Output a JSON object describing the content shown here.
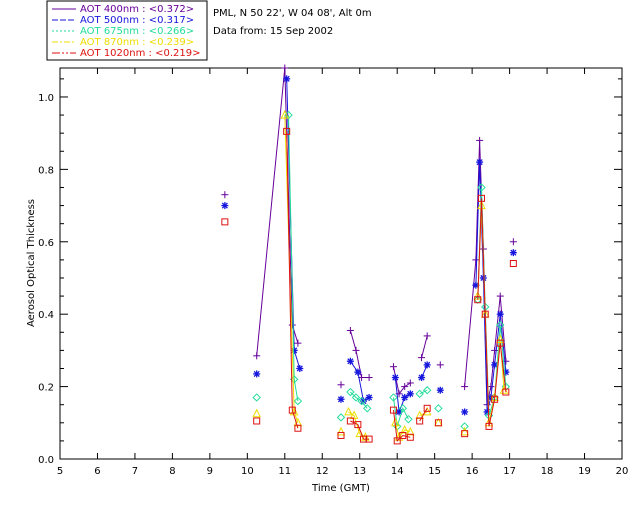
{
  "chart_data": {
    "type": "scatter",
    "title": "",
    "xlabel": "Time (GMT)",
    "ylabel": "Aerosol Optical Thickness",
    "xlim": [
      5,
      20
    ],
    "ylim": [
      0,
      1.08
    ],
    "xticks": [
      5,
      6,
      7,
      8,
      9,
      10,
      11,
      12,
      13,
      14,
      15,
      16,
      17,
      18,
      19,
      20
    ],
    "yticks": [
      0.0,
      0.2,
      0.4,
      0.6,
      0.8,
      1.0
    ],
    "xtick_labels": [
      "5",
      "6",
      "7",
      "8",
      "9",
      "10",
      "11",
      "12",
      "13",
      "14",
      "15",
      "16",
      "17",
      "18",
      "19",
      "20"
    ],
    "ytick_labels": [
      "0.0",
      "0.2",
      "0.4",
      "0.6",
      "0.8",
      "1.0"
    ],
    "grid": false,
    "legend_position": "top-left",
    "info_lines": [
      "PML, N 50 22', W 04 08', Alt 0m",
      "Data from: 15 Sep 2002"
    ],
    "series": [
      {
        "name": "AOT  400nm : <0.372>",
        "color": "#660099",
        "marker": "plus",
        "points": [
          [
            9.4,
            0.73
          ],
          [
            10.25,
            0.285
          ],
          [
            11.0,
            1.08
          ],
          [
            11.2,
            0.37
          ],
          [
            11.35,
            0.32
          ],
          [
            12.5,
            0.205
          ],
          [
            12.75,
            0.355
          ],
          [
            12.9,
            0.3
          ],
          [
            13.05,
            0.225
          ],
          [
            13.25,
            0.225
          ],
          [
            13.9,
            0.255
          ],
          [
            14.05,
            0.18
          ],
          [
            14.2,
            0.2
          ],
          [
            14.35,
            0.21
          ],
          [
            14.65,
            0.28
          ],
          [
            14.8,
            0.34
          ],
          [
            15.15,
            0.26
          ],
          [
            15.8,
            0.2
          ],
          [
            16.1,
            0.55
          ],
          [
            16.2,
            0.88
          ],
          [
            16.3,
            0.58
          ],
          [
            16.4,
            0.15
          ],
          [
            16.5,
            0.2
          ],
          [
            16.6,
            0.3
          ],
          [
            16.75,
            0.45
          ],
          [
            16.9,
            0.27
          ],
          [
            17.1,
            0.6
          ]
        ],
        "segments": [
          [
            1,
            2,
            3,
            4
          ],
          [
            6,
            7,
            8,
            9
          ],
          [
            10,
            11,
            12,
            13
          ],
          [
            14,
            15
          ],
          [
            17,
            18,
            19,
            20,
            21,
            22,
            23,
            24,
            25
          ]
        ]
      },
      {
        "name": "AOT  500nm : <0.317>",
        "color": "#1515dd",
        "marker": "star",
        "points": [
          [
            9.4,
            0.7
          ],
          [
            10.25,
            0.235
          ],
          [
            11.05,
            1.05
          ],
          [
            11.25,
            0.3
          ],
          [
            11.4,
            0.25
          ],
          [
            12.5,
            0.165
          ],
          [
            12.75,
            0.27
          ],
          [
            12.95,
            0.24
          ],
          [
            13.1,
            0.16
          ],
          [
            13.25,
            0.17
          ],
          [
            13.95,
            0.225
          ],
          [
            14.05,
            0.13
          ],
          [
            14.2,
            0.17
          ],
          [
            14.35,
            0.18
          ],
          [
            14.65,
            0.225
          ],
          [
            14.8,
            0.26
          ],
          [
            15.15,
            0.19
          ],
          [
            15.8,
            0.13
          ],
          [
            16.1,
            0.48
          ],
          [
            16.2,
            0.82
          ],
          [
            16.3,
            0.5
          ],
          [
            16.4,
            0.13
          ],
          [
            16.5,
            0.17
          ],
          [
            16.6,
            0.26
          ],
          [
            16.75,
            0.4
          ],
          [
            16.9,
            0.24
          ],
          [
            17.1,
            0.57
          ]
        ],
        "segments": [
          [
            2,
            3,
            4
          ],
          [
            6,
            7,
            8,
            9
          ],
          [
            10,
            11,
            12,
            13
          ],
          [
            14,
            15
          ],
          [
            18,
            19,
            20,
            21,
            22,
            23,
            24,
            25
          ]
        ]
      },
      {
        "name": "AOT  675nm : <0.266>",
        "color": "#22dd99",
        "marker": "diamond",
        "points": [
          [
            10.25,
            0.17
          ],
          [
            11.1,
            0.95
          ],
          [
            11.25,
            0.22
          ],
          [
            11.35,
            0.16
          ],
          [
            12.5,
            0.115
          ],
          [
            12.75,
            0.185
          ],
          [
            12.9,
            0.17
          ],
          [
            13.05,
            0.16
          ],
          [
            13.2,
            0.14
          ],
          [
            13.9,
            0.17
          ],
          [
            14.0,
            0.09
          ],
          [
            14.15,
            0.14
          ],
          [
            14.3,
            0.11
          ],
          [
            14.6,
            0.18
          ],
          [
            14.8,
            0.19
          ],
          [
            15.1,
            0.14
          ],
          [
            15.8,
            0.09
          ],
          [
            16.15,
            0.44
          ],
          [
            16.25,
            0.75
          ],
          [
            16.35,
            0.42
          ],
          [
            16.45,
            0.12
          ],
          [
            16.6,
            0.17
          ],
          [
            16.75,
            0.37
          ],
          [
            16.9,
            0.2
          ]
        ],
        "segments": [
          [
            1,
            2,
            3
          ],
          [
            5,
            6,
            7,
            8
          ],
          [
            9,
            10,
            11,
            12
          ],
          [
            13,
            14
          ],
          [
            17,
            18,
            19,
            20,
            21,
            22,
            23
          ]
        ]
      },
      {
        "name": "AOT  870nm : <0.239>",
        "color": "#eedd00",
        "marker": "triangle",
        "points": [
          [
            10.25,
            0.125
          ],
          [
            11.0,
            0.95
          ],
          [
            11.25,
            0.13
          ],
          [
            11.35,
            0.1
          ],
          [
            12.5,
            0.075
          ],
          [
            12.7,
            0.13
          ],
          [
            12.85,
            0.12
          ],
          [
            13.0,
            0.07
          ],
          [
            13.15,
            0.06
          ],
          [
            13.95,
            0.1
          ],
          [
            14.05,
            0.06
          ],
          [
            14.2,
            0.08
          ],
          [
            14.35,
            0.075
          ],
          [
            14.6,
            0.12
          ],
          [
            14.8,
            0.13
          ],
          [
            15.1,
            0.1
          ],
          [
            15.8,
            0.075
          ],
          [
            16.15,
            0.45
          ],
          [
            16.25,
            0.7
          ],
          [
            16.35,
            0.4
          ],
          [
            16.45,
            0.1
          ],
          [
            16.6,
            0.17
          ],
          [
            16.75,
            0.33
          ],
          [
            16.85,
            0.19
          ]
        ],
        "segments": [
          [
            1,
            2,
            3
          ],
          [
            5,
            6,
            7,
            8
          ],
          [
            9,
            10,
            11,
            12
          ],
          [
            13,
            14
          ],
          [
            17,
            18,
            19,
            20,
            21,
            22,
            23
          ]
        ]
      },
      {
        "name": "AOT 1020nm : <0.219>",
        "color": "#dd1111",
        "marker": "square",
        "points": [
          [
            9.4,
            0.655
          ],
          [
            10.25,
            0.105
          ],
          [
            11.05,
            0.905
          ],
          [
            11.2,
            0.135
          ],
          [
            11.35,
            0.085
          ],
          [
            12.5,
            0.065
          ],
          [
            12.75,
            0.105
          ],
          [
            12.95,
            0.095
          ],
          [
            13.1,
            0.055
          ],
          [
            13.25,
            0.055
          ],
          [
            13.9,
            0.135
          ],
          [
            14.0,
            0.05
          ],
          [
            14.15,
            0.065
          ],
          [
            14.35,
            0.06
          ],
          [
            14.6,
            0.105
          ],
          [
            14.8,
            0.14
          ],
          [
            15.1,
            0.1
          ],
          [
            15.8,
            0.07
          ],
          [
            16.15,
            0.44
          ],
          [
            16.25,
            0.72
          ],
          [
            16.35,
            0.4
          ],
          [
            16.45,
            0.09
          ],
          [
            16.6,
            0.165
          ],
          [
            16.75,
            0.32
          ],
          [
            16.9,
            0.185
          ],
          [
            17.1,
            0.54
          ]
        ],
        "segments": [
          [
            2,
            3,
            4
          ],
          [
            6,
            7,
            8,
            9
          ],
          [
            10,
            11,
            12,
            13
          ],
          [
            14,
            15
          ],
          [
            18,
            19,
            20,
            21,
            22,
            23,
            24
          ]
        ]
      }
    ]
  }
}
